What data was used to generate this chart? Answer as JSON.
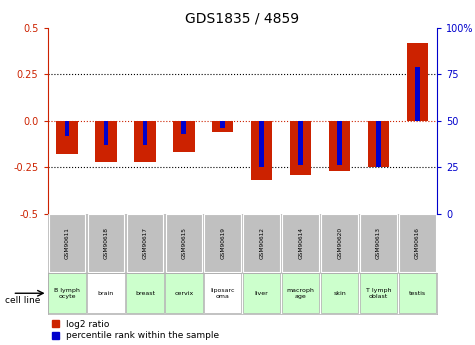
{
  "title": "GDS1835 / 4859",
  "samples": [
    "GSM90611",
    "GSM90618",
    "GSM90617",
    "GSM90615",
    "GSM90619",
    "GSM90612",
    "GSM90614",
    "GSM90620",
    "GSM90613",
    "GSM90616"
  ],
  "cell_lines": [
    "B lymph\nocyte",
    "brain",
    "breast",
    "cervix",
    "liposarc\noma",
    "liver",
    "macroph\nage",
    "skin",
    "T lymph\noblast",
    "testis"
  ],
  "cell_line_colors": [
    "#ccffcc",
    "#ffffff",
    "#ccffcc",
    "#ccffcc",
    "#ffffff",
    "#ccffcc",
    "#ccffcc",
    "#ccffcc",
    "#ccffcc",
    "#ccffcc"
  ],
  "log2_ratio": [
    -0.18,
    -0.22,
    -0.22,
    -0.17,
    -0.06,
    -0.32,
    -0.29,
    -0.27,
    -0.25,
    0.42
  ],
  "percentile_rank": [
    42,
    37,
    37,
    43,
    46,
    25,
    26,
    26,
    25,
    79
  ],
  "ylim_left": [
    -0.5,
    0.5
  ],
  "ylim_right": [
    0,
    100
  ],
  "yticks_left": [
    -0.5,
    -0.25,
    0.0,
    0.25,
    0.5
  ],
  "yticks_right": [
    0,
    25,
    50,
    75,
    100
  ],
  "red_color": "#cc2200",
  "blue_color": "#0000cc",
  "red_bar_width": 0.55,
  "blue_bar_width": 0.12,
  "zero_line_color": "#cc2200",
  "grid_color": "#000000",
  "bg_color": "#ffffff",
  "sample_bg_color": "#c0c0c0",
  "legend_red_label": "log2 ratio",
  "legend_blue_label": "percentile rank within the sample",
  "cell_line_label": "cell line"
}
